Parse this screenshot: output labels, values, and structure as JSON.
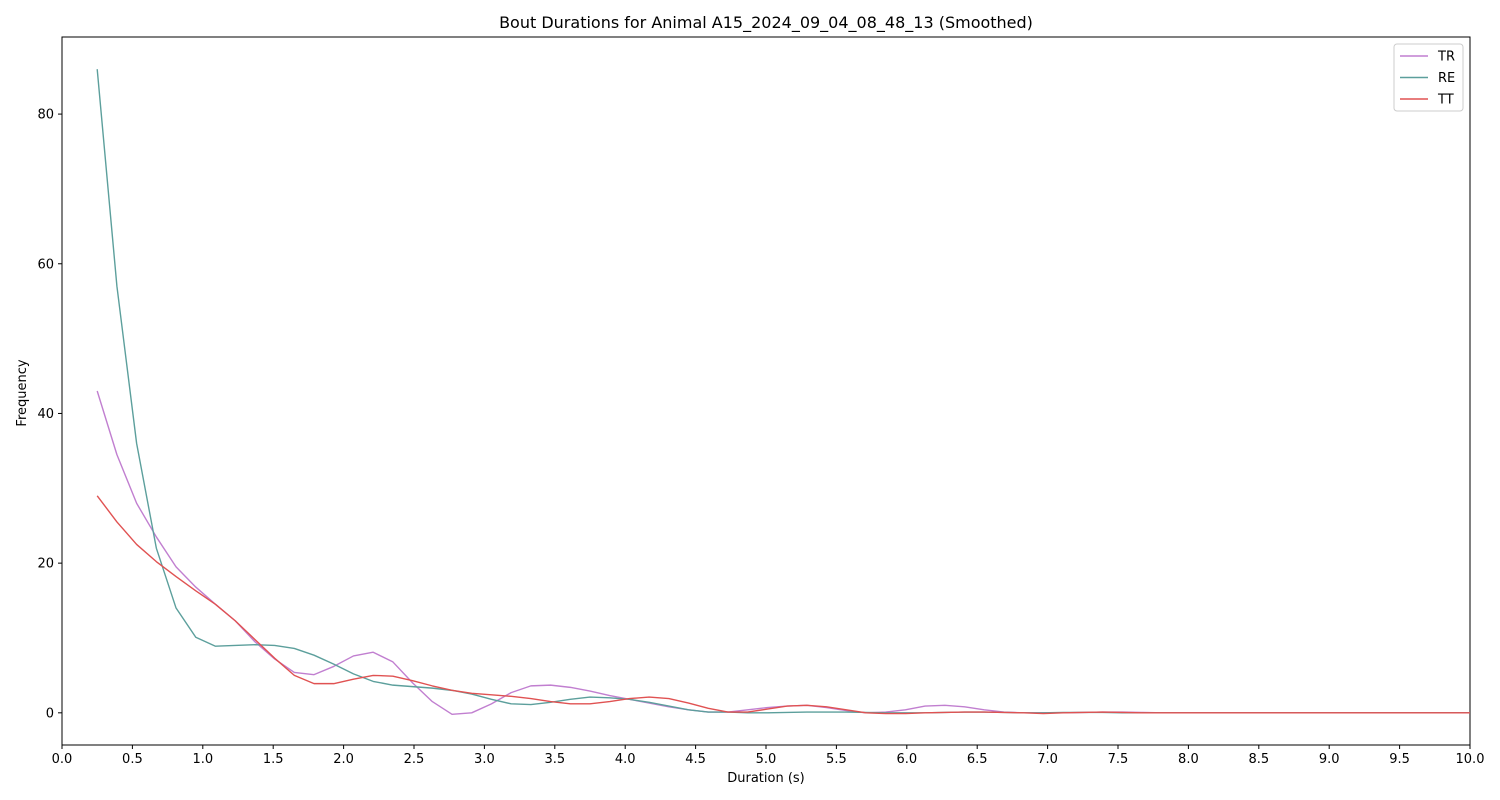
{
  "chart_data": {
    "type": "line",
    "title": "Bout Durations for Animal A15_2024_09_04_08_48_13 (Smoothed)",
    "xlabel": "Duration (s)",
    "ylabel": "Frequency",
    "xlim": [
      0,
      10
    ],
    "ylim": [
      -4.3,
      90.3
    ],
    "xticks": [
      "0.0",
      "0.5",
      "1.0",
      "1.5",
      "2.0",
      "2.5",
      "3.0",
      "3.5",
      "4.0",
      "4.5",
      "5.0",
      "5.5",
      "6.0",
      "6.5",
      "7.0",
      "7.5",
      "8.0",
      "8.5",
      "9.0",
      "9.5",
      "10.0"
    ],
    "yticks": [
      "0",
      "20",
      "40",
      "60",
      "80"
    ],
    "grid": false,
    "legend_position": "top-right",
    "x": [
      0.25,
      0.39,
      0.53,
      0.67,
      0.81,
      0.95,
      1.09,
      1.23,
      1.37,
      1.51,
      1.65,
      1.79,
      1.93,
      2.07,
      2.21,
      2.35,
      2.49,
      2.63,
      2.77,
      2.91,
      3.05,
      3.19,
      3.33,
      3.47,
      3.61,
      3.75,
      3.89,
      4.03,
      4.17,
      4.31,
      4.45,
      4.59,
      4.73,
      4.87,
      5.01,
      5.15,
      5.29,
      5.43,
      5.57,
      5.71,
      5.85,
      5.99,
      6.13,
      6.27,
      6.41,
      6.55,
      6.69,
      6.83,
      6.97,
      7.11,
      7.25,
      7.39,
      7.53,
      7.67,
      7.81,
      7.95,
      8.09,
      8.23,
      8.37,
      8.51,
      8.65,
      8.79,
      8.93,
      9.07,
      9.21,
      9.35,
      9.49,
      9.63,
      9.77,
      9.91,
      10.0
    ],
    "series": [
      {
        "name": "TR",
        "color": "#c17fd0",
        "values": [
          43.0,
          34.5,
          28.0,
          23.5,
          19.5,
          16.8,
          14.5,
          12.3,
          9.5,
          7.2,
          5.4,
          5.1,
          6.2,
          7.6,
          8.1,
          6.8,
          4.0,
          1.5,
          -0.2,
          0.0,
          1.2,
          2.7,
          3.6,
          3.7,
          3.4,
          2.9,
          2.3,
          1.8,
          1.3,
          0.8,
          0.4,
          0.1,
          0.1,
          0.4,
          0.7,
          0.9,
          1.0,
          0.7,
          0.3,
          0.0,
          0.1,
          0.4,
          0.9,
          1.0,
          0.8,
          0.4,
          0.1,
          0.0,
          0.0,
          0.0,
          0.05,
          0.1,
          0.1,
          0.05,
          0.0,
          0.0,
          0.0,
          0.0,
          0.0,
          0.0,
          0.0,
          0.0,
          0.0,
          0.0,
          0.0,
          0.0,
          0.0,
          0.0,
          0.0,
          0.0,
          0.0
        ]
      },
      {
        "name": "RE",
        "color": "#5c9f9c",
        "values": [
          86.0,
          57.0,
          36.0,
          22.0,
          14.0,
          10.1,
          8.9,
          9.0,
          9.1,
          9.0,
          8.6,
          7.7,
          6.5,
          5.2,
          4.2,
          3.7,
          3.5,
          3.3,
          3.0,
          2.5,
          1.8,
          1.2,
          1.1,
          1.4,
          1.8,
          2.1,
          2.0,
          1.8,
          1.4,
          0.9,
          0.4,
          0.1,
          0.1,
          0.0,
          0.0,
          0.05,
          0.1,
          0.1,
          0.1,
          0.05,
          0.0,
          0.0,
          0.0,
          0.05,
          0.1,
          0.1,
          0.05,
          0.0,
          0.0,
          0.05,
          0.05,
          0.05,
          0.0,
          0.0,
          0.0,
          0.0,
          0.0,
          0.0,
          0.0,
          0.0,
          0.0,
          0.0,
          0.0,
          0.0,
          0.0,
          0.0,
          0.0,
          0.0,
          0.0,
          0.0,
          0.0
        ]
      },
      {
        "name": "TT",
        "color": "#e05252",
        "values": [
          29.0,
          25.5,
          22.5,
          20.2,
          18.2,
          16.3,
          14.5,
          12.3,
          9.8,
          7.3,
          5.0,
          3.9,
          3.9,
          4.5,
          5.0,
          4.9,
          4.3,
          3.6,
          3.0,
          2.6,
          2.4,
          2.2,
          1.9,
          1.5,
          1.2,
          1.2,
          1.5,
          1.9,
          2.1,
          1.9,
          1.3,
          0.6,
          0.1,
          0.1,
          0.5,
          0.9,
          1.0,
          0.8,
          0.4,
          0.0,
          -0.1,
          -0.1,
          0.0,
          0.05,
          0.1,
          0.1,
          0.05,
          0.0,
          -0.1,
          0.0,
          0.05,
          0.1,
          0.05,
          0.0,
          0.0,
          0.0,
          0.0,
          0.0,
          0.0,
          0.0,
          0.0,
          0.0,
          0.0,
          0.0,
          0.0,
          0.0,
          0.0,
          0.0,
          0.0,
          0.0,
          0.0
        ]
      }
    ]
  }
}
